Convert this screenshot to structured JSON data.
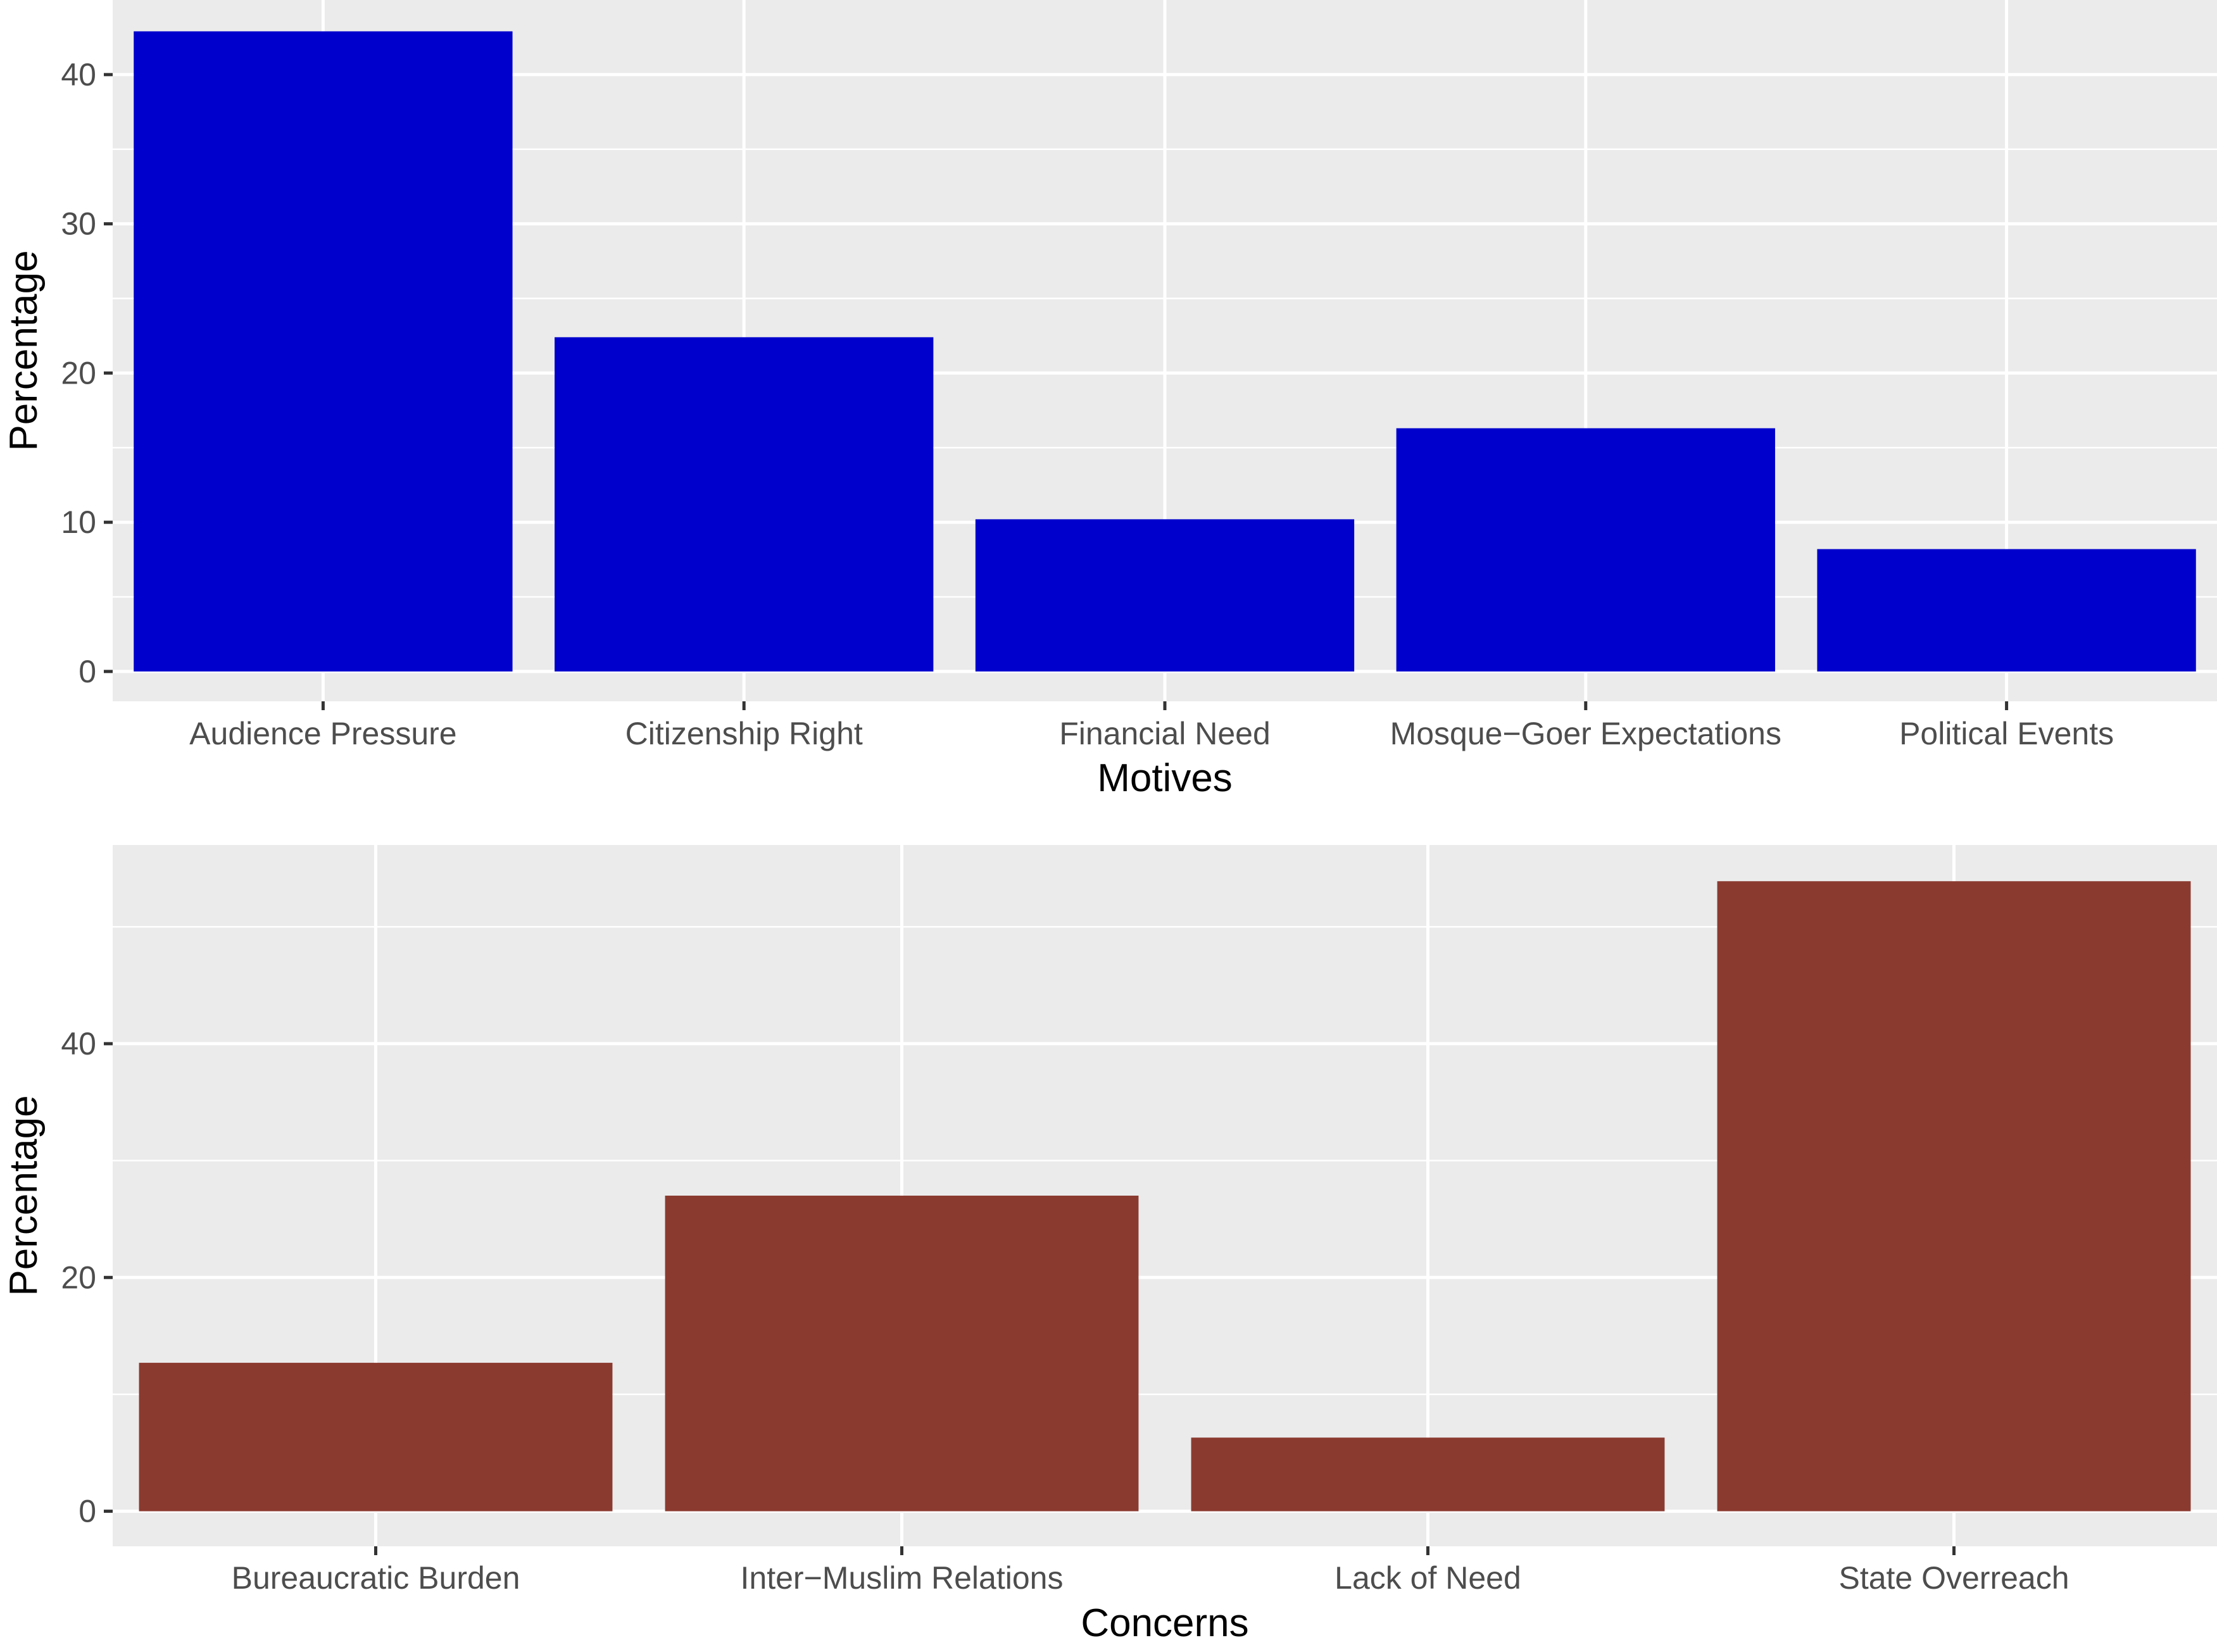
{
  "chart_data": [
    {
      "type": "bar",
      "xlabel": "Motives",
      "ylabel": "Percentage",
      "categories": [
        "Audience Pressure",
        "Citizenship Right",
        "Financial Need",
        "Mosque−Goer Expectations",
        "Political Events"
      ],
      "values": [
        42.9,
        22.4,
        10.2,
        16.3,
        8.2
      ],
      "ylim": [
        -2,
        45
      ],
      "yticks": [
        0,
        10,
        20,
        30,
        40
      ],
      "ytick_labels": [
        "0",
        "10",
        "20",
        "30",
        "40"
      ],
      "bar_color": "#0000CD",
      "grid": true,
      "background": "#EBEBEB"
    },
    {
      "type": "bar",
      "xlabel": "Concerns",
      "ylabel": "Percentage",
      "categories": [
        "Bureaucratic Burden",
        "Inter−Muslim Relations",
        "Lack of Need",
        "State Overreach"
      ],
      "values": [
        12.7,
        27.0,
        6.3,
        53.9
      ],
      "ylim": [
        -3,
        57
      ],
      "yticks": [
        0,
        20,
        40
      ],
      "ytick_labels": [
        "0",
        "20",
        "40"
      ],
      "bar_color": "#8B3A30",
      "grid": true,
      "background": "#EBEBEB"
    }
  ]
}
